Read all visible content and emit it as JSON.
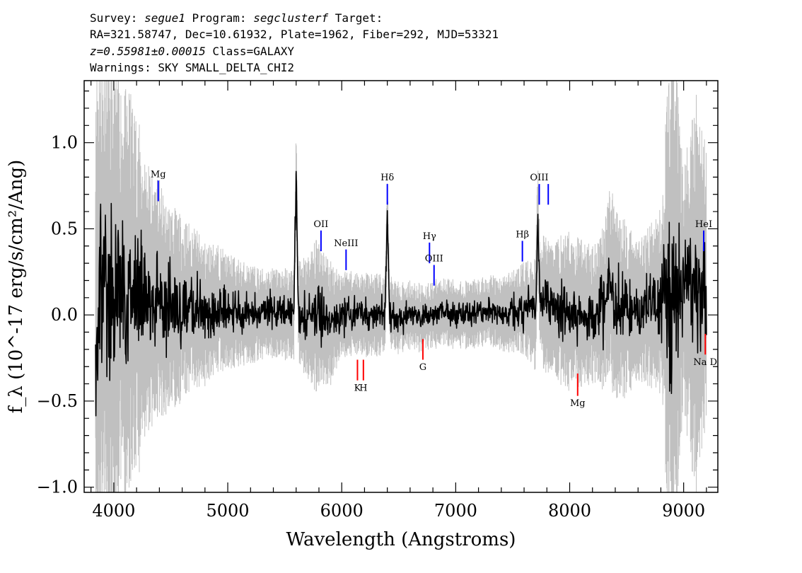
{
  "header": {
    "line1": {
      "p1": "Survey: ",
      "survey": "segue1",
      "p2": " Program: ",
      "program": "segclusterf",
      "p3": " Target:"
    },
    "line2": "RA=321.58747, Dec=10.61932, Plate=1962, Fiber=292, MJD=53321",
    "line3": {
      "redshift": "z=0.55981±0.00015",
      "cls": " Class=GALAXY"
    },
    "line4": "Warnings: SKY SMALL_DELTA_CHI2"
  },
  "chart_data": {
    "type": "line",
    "xlabel": "Wavelength (Angstroms)",
    "ylabel": "f_λ (10^-17 erg/s/cm²/Ang)",
    "xlim": [
      3740,
      9300
    ],
    "ylim": [
      -1.03,
      1.36
    ],
    "xticks": [
      {
        "v": 4000,
        "label": "4000"
      },
      {
        "v": 5000,
        "label": "5000"
      },
      {
        "v": 6000,
        "label": "6000"
      },
      {
        "v": 7000,
        "label": "7000"
      },
      {
        "v": 8000,
        "label": "8000"
      },
      {
        "v": 9000,
        "label": "9000"
      }
    ],
    "yticks": [
      {
        "v": -1.0,
        "label": "−1.0"
      },
      {
        "v": -0.5,
        "label": "−0.5"
      },
      {
        "v": 0.0,
        "label": "0.0"
      },
      {
        "v": 0.5,
        "label": "0.5"
      },
      {
        "v": 1.0,
        "label": "1.0"
      }
    ],
    "colors": {
      "flux": "#000000",
      "error": "#c0c0c0",
      "emission": "#0000ff",
      "absorption": "#ff0000",
      "frame": "#000000"
    },
    "series": [
      {
        "role": "flux",
        "x": [
          3840,
          3880,
          3920,
          3960,
          4000,
          4050,
          4100,
          4150,
          4200,
          4250,
          4300,
          4350,
          4400,
          4450,
          4500,
          4600,
          4700,
          4800,
          4900,
          5000,
          5200,
          5400,
          5580,
          5600,
          5620,
          5700,
          5800,
          5900,
          6000,
          6100,
          6200,
          6300,
          6380,
          6400,
          6420,
          6500,
          6600,
          6700,
          6800,
          6900,
          7000,
          7100,
          7200,
          7300,
          7400,
          7500,
          7600,
          7700,
          7720,
          7740,
          7800,
          7900,
          8000,
          8100,
          8200,
          8300,
          8350,
          8400,
          8500,
          8600,
          8700,
          8800,
          8850,
          8900,
          9000,
          9100,
          9200
        ],
        "y": [
          0.0,
          0.1,
          0.2,
          0.05,
          0.12,
          0.18,
          0.1,
          0.16,
          0.12,
          0.07,
          0.1,
          0.07,
          0.11,
          0.02,
          0.05,
          0.03,
          0.05,
          0.0,
          0.04,
          0.02,
          0.0,
          0.01,
          0.0,
          0.85,
          0.02,
          -0.02,
          0.0,
          -0.05,
          0.0,
          0.01,
          0.0,
          0.0,
          0.0,
          0.6,
          0.02,
          -0.02,
          0.0,
          -0.02,
          0.0,
          0.02,
          0.0,
          0.0,
          0.01,
          0.03,
          0.0,
          0.02,
          0.04,
          0.0,
          0.55,
          0.1,
          0.05,
          0.03,
          0.02,
          0.01,
          0.0,
          0.04,
          0.2,
          0.06,
          0.03,
          0.02,
          0.05,
          0.08,
          0.1,
          0.12,
          0.15,
          0.1,
          0.18
        ]
      },
      {
        "role": "error",
        "x": [
          3840,
          3900,
          4000,
          4100,
          4200,
          4300,
          4400,
          4500,
          4700,
          5000,
          5300,
          5600,
          5800,
          6000,
          6300,
          6600,
          7000,
          7300,
          7600,
          7800,
          8000,
          8200,
          8400,
          8600,
          8800,
          8900,
          9000,
          9100,
          9200
        ],
        "y": [
          1.3,
          1.1,
          0.95,
          0.9,
          0.8,
          0.6,
          0.5,
          0.45,
          0.35,
          0.25,
          0.2,
          0.2,
          0.35,
          0.2,
          0.18,
          0.15,
          0.15,
          0.15,
          0.2,
          0.3,
          0.35,
          0.3,
          0.45,
          0.3,
          0.4,
          1.3,
          0.5,
          0.9,
          0.6
        ]
      }
    ],
    "spectral_lines": [
      {
        "label": "Mg",
        "x": 4390,
        "kind": "emission",
        "y_top": 0.78,
        "y_bottom": 0.66,
        "label_y": 0.8
      },
      {
        "label": "OII",
        "x": 5818,
        "kind": "emission",
        "y_top": 0.49,
        "y_bottom": 0.37,
        "label_y": 0.51
      },
      {
        "label": "NeIII",
        "x": 6038,
        "kind": "emission",
        "y_top": 0.38,
        "y_bottom": 0.26,
        "label_y": 0.4
      },
      {
        "label": "Hδ",
        "x": 6400,
        "kind": "emission",
        "y_top": 0.76,
        "y_bottom": 0.64,
        "label_y": 0.78
      },
      {
        "label": "Hγ",
        "x": 6770,
        "kind": "emission",
        "y_top": 0.42,
        "y_bottom": 0.3,
        "label_y": 0.44
      },
      {
        "label": "OIII",
        "x": 6810,
        "kind": "emission",
        "y_top": 0.29,
        "y_bottom": 0.17,
        "label_y": 0.31
      },
      {
        "label": "Hβ",
        "x": 7585,
        "kind": "emission",
        "y_top": 0.43,
        "y_bottom": 0.31,
        "label_y": 0.45
      },
      {
        "label": "OIII",
        "x": 7733,
        "kind": "emission",
        "y_top": 0.76,
        "y_bottom": 0.64,
        "label_y": 0.78
      },
      {
        "label": "",
        "x": 7812,
        "kind": "emission",
        "y_top": 0.76,
        "y_bottom": 0.64,
        "label_y": 0.78
      },
      {
        "label": "HeI",
        "x": 9176,
        "kind": "emission",
        "y_top": 0.49,
        "y_bottom": 0.37,
        "label_y": 0.51
      },
      {
        "label": "K",
        "x": 6138,
        "kind": "absorption",
        "y_top": -0.26,
        "y_bottom": -0.38,
        "label_y": -0.44
      },
      {
        "label": "H",
        "x": 6190,
        "kind": "absorption",
        "y_top": -0.26,
        "y_bottom": -0.38,
        "label_y": -0.44
      },
      {
        "label": "G",
        "x": 6712,
        "kind": "absorption",
        "y_top": -0.14,
        "y_bottom": -0.26,
        "label_y": -0.32
      },
      {
        "label": "Mg",
        "x": 8070,
        "kind": "absorption",
        "y_top": -0.34,
        "y_bottom": -0.47,
        "label_y": -0.53
      },
      {
        "label": "Na D",
        "x": 9190,
        "kind": "absorption",
        "y_top": -0.11,
        "y_bottom": -0.23,
        "label_y": -0.29
      }
    ]
  }
}
